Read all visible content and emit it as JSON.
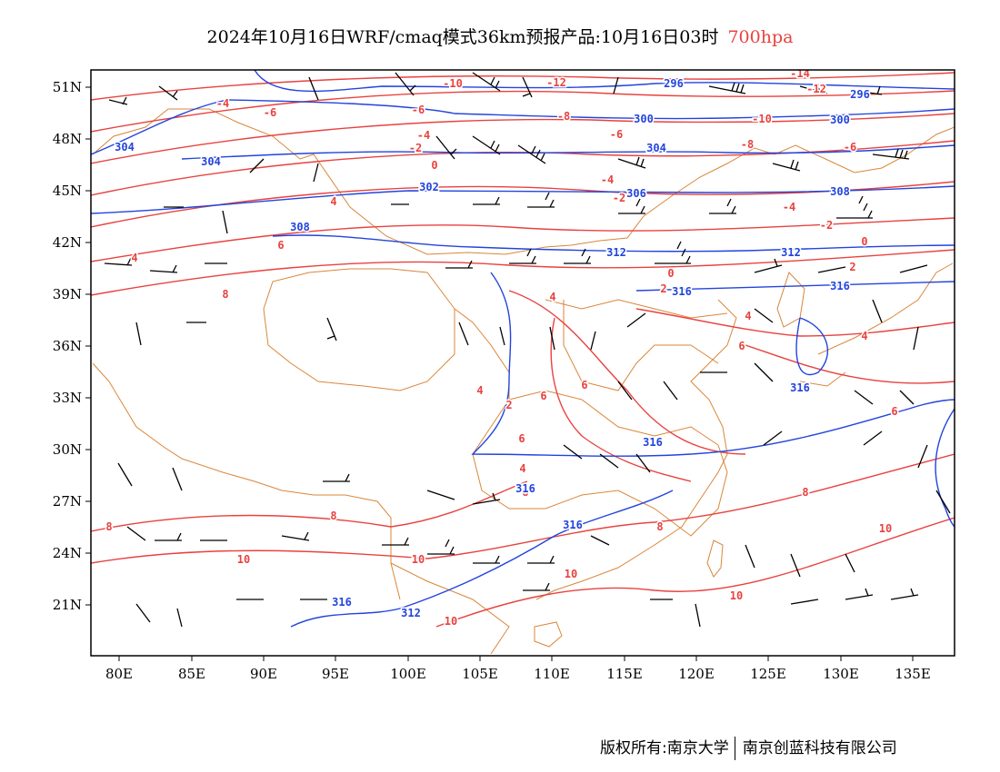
{
  "title": {
    "main": "2024年10月16日WRF/cmaq模式36km预报产品:10月16日03时",
    "level": "700hpa"
  },
  "axes": {
    "lat_labels": [
      "51N",
      "48N",
      "45N",
      "42N",
      "39N",
      "36N",
      "33N",
      "30N",
      "27N",
      "24N",
      "21N"
    ],
    "lon_labels": [
      "80E",
      "85E",
      "90E",
      "95E",
      "100E",
      "105E",
      "110E",
      "115E",
      "120E",
      "125E",
      "130E",
      "135E"
    ]
  },
  "temperature_contour_labels": [
    "-14",
    "-12",
    "-12",
    "-10",
    "-10",
    "-8",
    "-8",
    "-6",
    "-6",
    "-6",
    "-6",
    "-4",
    "-4",
    "-4",
    "-4",
    "-2",
    "-2",
    "-2",
    "0",
    "0",
    "0",
    "2",
    "2",
    "2",
    "4",
    "4",
    "4",
    "4",
    "4",
    "4",
    "4",
    "6",
    "6",
    "6",
    "6",
    "6",
    "6",
    "8",
    "8",
    "8",
    "8",
    "8",
    "8",
    "10",
    "10",
    "10",
    "10",
    "10",
    "10"
  ],
  "height_contour_labels": [
    "296",
    "296",
    "300",
    "300",
    "304",
    "304",
    "304",
    "302",
    "306",
    "308",
    "308",
    "312",
    "312",
    "316",
    "316",
    "316",
    "316",
    "316",
    "316",
    "316",
    "312"
  ],
  "colors": {
    "temperature": "#e8423f",
    "height": "#2244dd",
    "boundary": "#d9863a",
    "wind": "#000000"
  },
  "copyright": {
    "owner": "版权所有:南京大学",
    "company": "南京创蓝科技有限公司"
  }
}
